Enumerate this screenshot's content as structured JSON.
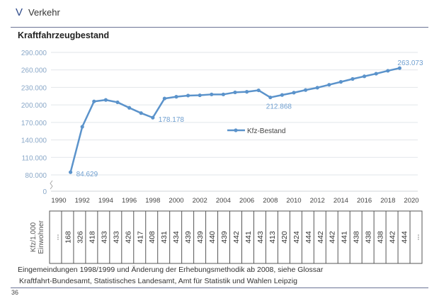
{
  "header": {
    "section_letter": "V",
    "section_title": "Verkehr"
  },
  "chart_data": {
    "type": "line",
    "title": "Kraftfahrzeugbestand",
    "x": [
      1991,
      1992,
      1993,
      1994,
      1995,
      1996,
      1997,
      1998,
      1999,
      2000,
      2001,
      2002,
      2003,
      2004,
      2005,
      2006,
      2007,
      2008,
      2009,
      2010,
      2011,
      2012,
      2013,
      2014,
      2015,
      2016,
      2017,
      2018,
      2019
    ],
    "series": [
      {
        "name": "Kfz-Bestand",
        "color": "#5b93cb",
        "values": [
          84629,
          162500,
          206000,
          208500,
          204500,
          195000,
          186000,
          178178,
          211000,
          214000,
          216000,
          216500,
          218000,
          218000,
          221500,
          222500,
          225000,
          212868,
          217000,
          221000,
          225500,
          229500,
          234500,
          239500,
          244500,
          249000,
          253500,
          258500,
          263073
        ]
      }
    ],
    "data_labels": [
      {
        "x": 1991,
        "label": "84.629"
      },
      {
        "x": 1998,
        "label": "178.178"
      },
      {
        "x": 2008,
        "label": "212.868"
      },
      {
        "x": 2019,
        "label": "263.073"
      }
    ],
    "y_ticks": [
      "0",
      "80.000",
      "110.000",
      "140.000",
      "170.000",
      "200.000",
      "230.000",
      "260.000",
      "290.000"
    ],
    "y_tick_values": [
      0,
      80000,
      110000,
      140000,
      170000,
      200000,
      230000,
      260000,
      290000
    ],
    "y_axis_break": true,
    "x_ticks": [
      "1990",
      "1992",
      "1994",
      "1996",
      "1998",
      "2000",
      "2002",
      "2004",
      "2006",
      "2008",
      "2010",
      "2012",
      "2014",
      "2016",
      "2018",
      "2020"
    ],
    "xlim": [
      1990,
      2020
    ],
    "ylim": [
      0,
      290000
    ],
    "grid": true,
    "legend": "center"
  },
  "table": {
    "row_label": "Kfz/1.000 Einwohner",
    "values": [
      "...",
      "168",
      "326",
      "418",
      "433",
      "433",
      "426",
      "417",
      "408",
      "431",
      "434",
      "439",
      "439",
      "440",
      "439",
      "442",
      "441",
      "443",
      "413",
      "420",
      "424",
      "444",
      "442",
      "442",
      "441",
      "438",
      "438",
      "438",
      "442",
      "444",
      "..."
    ]
  },
  "notes": {
    "footnote": "Eingemeindungen 1998/1999 und Änderung der Erhebungsmethodik ab 2008, siehe Glossar",
    "source": "Kraftfahrt-Bundesamt, Statistisches Landesamt, Amt für Statistik und Wahlen Leipzig"
  },
  "page_number": "36"
}
